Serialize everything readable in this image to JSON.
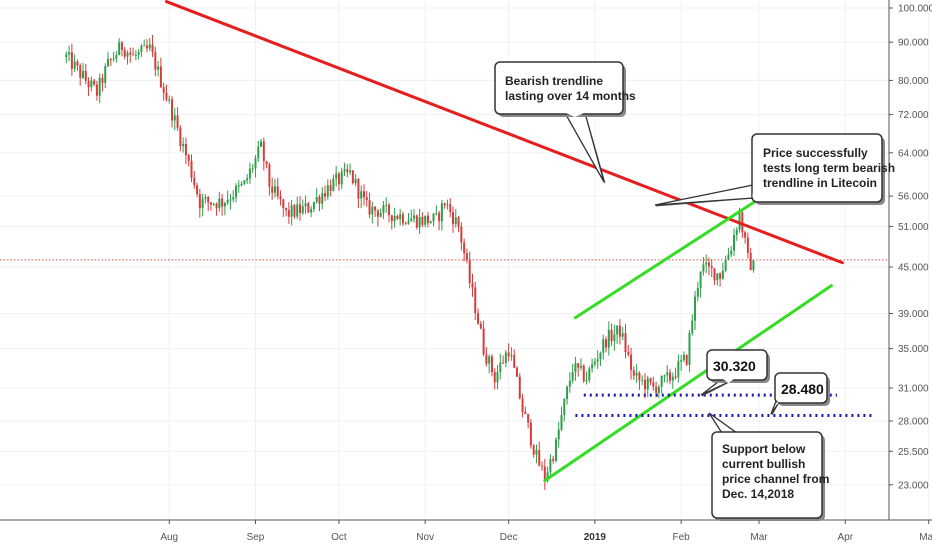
{
  "chart_data": {
    "type": "candlestick",
    "y_scale": "log",
    "ylim": [
      20.0,
      105.0
    ],
    "grid": true,
    "y_ticks": [
      "100.000",
      "90.000",
      "80.000",
      "72.000",
      "64.000",
      "56.000",
      "51.000",
      "45.000",
      "39.000",
      "35.000",
      "31.000",
      "28.000",
      "25.500",
      "23.000"
    ],
    "x_ticks": [
      {
        "label": "Aug",
        "major": false
      },
      {
        "label": "Sep",
        "major": false
      },
      {
        "label": "Oct",
        "major": false
      },
      {
        "label": "Nov",
        "major": false
      },
      {
        "label": "Dec",
        "major": false
      },
      {
        "label": "2019",
        "major": true
      },
      {
        "label": "Feb",
        "major": false
      },
      {
        "label": "Mar",
        "major": false
      },
      {
        "label": "Apr",
        "major": false
      },
      {
        "label": "May",
        "major": false
      }
    ],
    "current_price_line": 46.0,
    "price_anchors": [
      [
        "2018-06-25",
        86
      ],
      [
        "2018-07-02",
        80
      ],
      [
        "2018-07-06",
        77
      ],
      [
        "2018-07-10",
        84
      ],
      [
        "2018-07-15",
        89
      ],
      [
        "2018-07-19",
        86
      ],
      [
        "2018-07-25",
        88
      ],
      [
        "2018-07-30",
        78
      ],
      [
        "2018-08-05",
        67
      ],
      [
        "2018-08-12",
        55
      ],
      [
        "2018-08-20",
        55
      ],
      [
        "2018-08-28",
        58
      ],
      [
        "2018-09-03",
        65
      ],
      [
        "2018-09-06",
        58
      ],
      [
        "2018-09-12",
        53
      ],
      [
        "2018-09-20",
        54
      ],
      [
        "2018-09-28",
        58
      ],
      [
        "2018-10-05",
        60
      ],
      [
        "2018-10-11",
        54
      ],
      [
        "2018-10-20",
        53
      ],
      [
        "2018-10-30",
        52
      ],
      [
        "2018-11-05",
        52
      ],
      [
        "2018-11-08",
        55
      ],
      [
        "2018-11-13",
        51
      ],
      [
        "2018-11-17",
        43
      ],
      [
        "2018-11-22",
        35
      ],
      [
        "2018-11-26",
        32
      ],
      [
        "2018-12-01",
        35
      ],
      [
        "2018-12-06",
        29
      ],
      [
        "2018-12-11",
        25
      ],
      [
        "2018-12-14",
        23.5
      ],
      [
        "2018-12-18",
        26
      ],
      [
        "2018-12-24",
        33
      ],
      [
        "2018-12-29",
        32
      ],
      [
        "2019-01-05",
        36
      ],
      [
        "2019-01-10",
        37
      ],
      [
        "2019-01-15",
        32
      ],
      [
        "2019-01-22",
        31
      ],
      [
        "2019-01-28",
        32
      ],
      [
        "2019-02-03",
        34
      ],
      [
        "2019-02-08",
        45
      ],
      [
        "2019-02-15",
        44
      ],
      [
        "2019-02-19",
        48
      ],
      [
        "2019-02-22",
        53
      ],
      [
        "2019-02-25",
        46
      ],
      [
        "2019-02-27",
        45
      ]
    ],
    "annotations": [
      {
        "id": "bearish-trendline",
        "color": "#e61e1e",
        "points": [
          [
            "2018-07-31",
            102
          ],
          [
            "2019-03-31",
            45.6
          ]
        ]
      },
      {
        "id": "channel-upper",
        "color": "#33dd22",
        "points": [
          [
            "2018-12-25",
            38.5
          ],
          [
            "2019-03-12",
            59
          ]
        ]
      },
      {
        "id": "channel-lower",
        "color": "#33dd22",
        "points": [
          [
            "2018-12-14",
            23.3
          ],
          [
            "2019-03-27",
            42.5
          ]
        ]
      },
      {
        "id": "support-30",
        "color": "#1a1aa6",
        "value": 30.32,
        "from": "2018-12-28",
        "to": "2019-03-29"
      },
      {
        "id": "support-28",
        "color": "#1a1aa6",
        "value": 28.48,
        "from": "2018-12-25",
        "to": "2019-04-11"
      }
    ],
    "callouts": [
      {
        "id": "callout-bearish",
        "lines": [
          "Bearish trendline",
          "lasting over 14 months"
        ]
      },
      {
        "id": "callout-test",
        "lines": [
          "Price successfully",
          "tests long term bearish",
          "trendline in Litecoin"
        ]
      },
      {
        "id": "callout-support",
        "lines": [
          "Support below",
          "current bullish",
          "price channel from",
          "Dec. 14,2018"
        ]
      }
    ],
    "level_labels": [
      {
        "id": "label-30",
        "text": "30.320"
      },
      {
        "id": "label-28",
        "text": "28.480"
      }
    ]
  }
}
